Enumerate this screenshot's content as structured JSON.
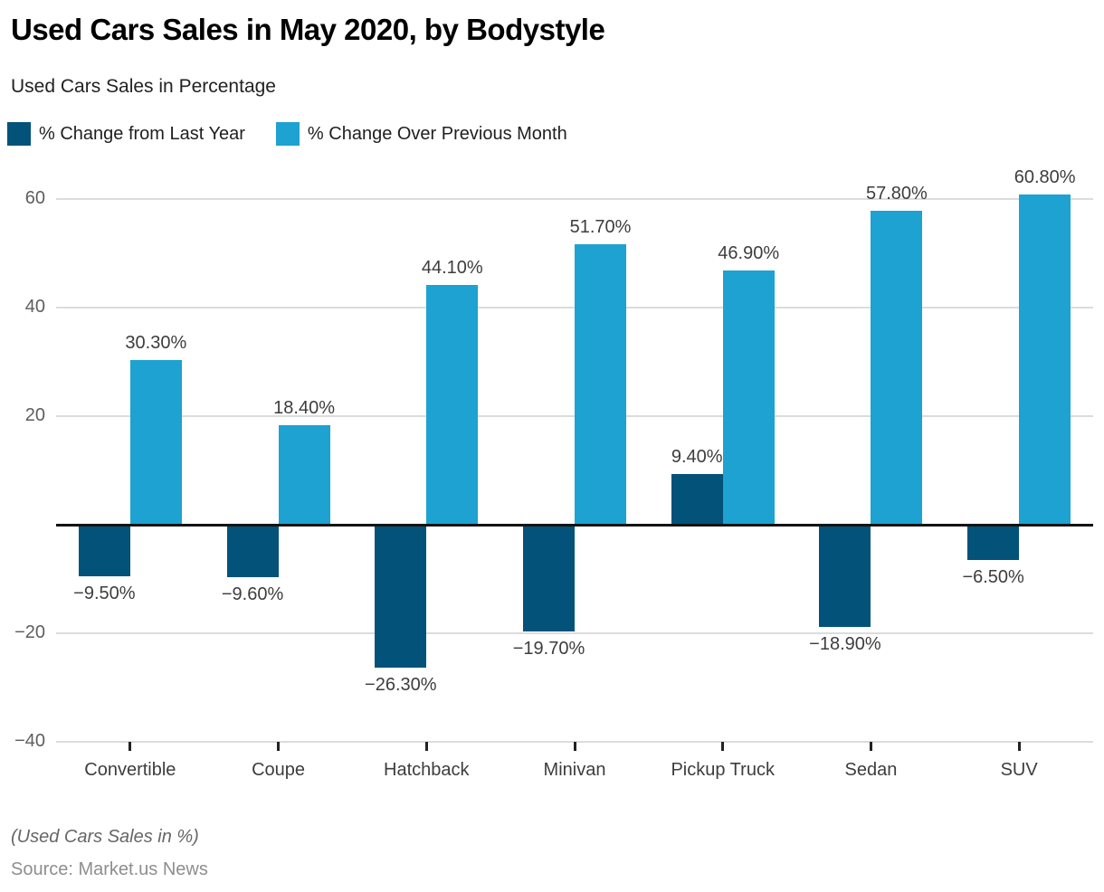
{
  "header": {
    "title": "Used Cars Sales in May 2020, by Bodystyle",
    "subtitle": "Used Cars Sales in Percentage"
  },
  "legend": {
    "items": [
      {
        "label": "% Change from Last Year",
        "color": "#02527a"
      },
      {
        "label": "% Change Over Previous Month",
        "color": "#1da2d1"
      }
    ]
  },
  "chart_data": {
    "type": "bar",
    "title": "Used Cars Sales in May 2020, by Bodystyle",
    "subtitle": "Used Cars Sales in Percentage",
    "categories": [
      "Convertible",
      "Coupe",
      "Hatchback",
      "Minivan",
      "Pickup Truck",
      "Sedan",
      "SUV"
    ],
    "series": [
      {
        "name": "% Change from Last Year",
        "color": "#02527a",
        "values": [
          -9.5,
          -9.6,
          -26.3,
          -19.7,
          9.4,
          -18.9,
          -6.5
        ],
        "labels": [
          "−9.50%",
          "−9.60%",
          "−26.30%",
          "−19.70%",
          "9.40%",
          "−18.90%",
          "−6.50%"
        ]
      },
      {
        "name": "% Change Over Previous Month",
        "color": "#1da2d1",
        "values": [
          30.3,
          18.4,
          44.1,
          51.7,
          46.9,
          57.8,
          60.8
        ],
        "labels": [
          "30.30%",
          "18.40%",
          "44.10%",
          "51.70%",
          "46.90%",
          "57.80%",
          "60.80%"
        ]
      }
    ],
    "yticks": [
      60,
      40,
      20,
      -20,
      -40
    ],
    "ytick_labels": [
      "60",
      "40",
      "20",
      "−20",
      "−40"
    ],
    "ylim": [
      -40,
      65.3
    ],
    "grid": true,
    "legend_position": "top-left",
    "gridline_color": "#dcdcdc",
    "zero_line_color": "#141414"
  },
  "footer": {
    "note": "(Used Cars Sales in %)",
    "source": "Source: Market.us News"
  }
}
